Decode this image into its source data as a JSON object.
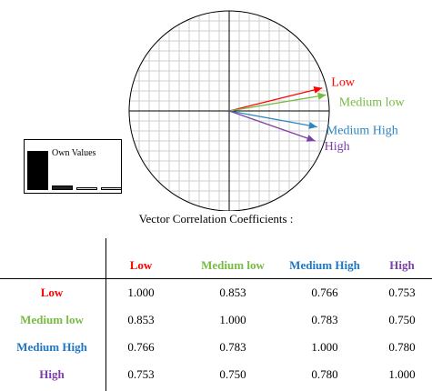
{
  "chart_data": [
    {
      "type": "scatter",
      "title": "",
      "xlim": [
        -1,
        1
      ],
      "ylim": [
        -1,
        1
      ],
      "grid": true,
      "series": [
        {
          "name": "Low",
          "color": "#ff0000",
          "x": 0.93,
          "y": 0.23
        },
        {
          "name": "Medium low",
          "color": "#77bb44",
          "x": 0.97,
          "y": 0.16
        },
        {
          "name": "Medium High",
          "color": "#2e86c1",
          "x": 0.88,
          "y": -0.16
        },
        {
          "name": "High",
          "color": "#7b3fa8",
          "x": 0.86,
          "y": -0.3
        }
      ]
    },
    {
      "type": "bar",
      "title": "Own Values",
      "values": [
        0.82,
        0.09,
        0.05,
        0.04
      ]
    },
    {
      "type": "table",
      "title": "Vector Correlation Coefficients :",
      "columns": [
        {
          "label": "Low",
          "color": "#ff0000"
        },
        {
          "label": "Medium low",
          "color": "#77bb44"
        },
        {
          "label": "Medium High",
          "color": "#1f77c4"
        },
        {
          "label": "High",
          "color": "#7b3fa8"
        }
      ],
      "rows": [
        {
          "label": "Low",
          "color": "#ff0000",
          "values": [
            "1.000",
            "0.853",
            "0.766",
            "0.753"
          ]
        },
        {
          "label": "Medium low",
          "color": "#77bb44",
          "values": [
            "0.853",
            "1.000",
            "0.783",
            "0.750"
          ]
        },
        {
          "label": "Medium High",
          "color": "#1f77c4",
          "values": [
            "0.766",
            "0.783",
            "1.000",
            "0.780"
          ]
        },
        {
          "label": "High",
          "color": "#7b3fa8",
          "values": [
            "0.753",
            "0.750",
            "0.780",
            "1.000"
          ]
        }
      ]
    }
  ]
}
